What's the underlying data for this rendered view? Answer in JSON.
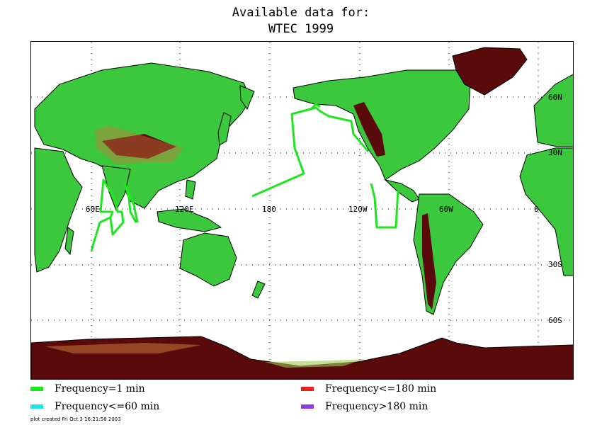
{
  "title_line1": "Available data for:",
  "title_line2": "WTEC 1999",
  "lon_labels": [
    "60E",
    "120E",
    "180",
    "120W",
    "60W",
    "0"
  ],
  "lat_labels": [
    "60N",
    "30N",
    "30S",
    "60S"
  ],
  "legend": [
    {
      "label": "Frequency=1 min",
      "color": "#1ee61e"
    },
    {
      "label": "Frequency<=180 min",
      "color": "#e61e1e"
    },
    {
      "label": "Frequency<=60 min",
      "color": "#1ee6e6"
    },
    {
      "label": "Frequency>180 min",
      "color": "#8c3ce6"
    }
  ],
  "footer": "plot created Fri Oct  3 16:21:58 2003",
  "colors": {
    "land_low": "#3cc83c",
    "land_mid": "#a0c850",
    "land_high": "#c8783c",
    "land_top": "#5a0a0a",
    "track": "#1ee61e"
  }
}
